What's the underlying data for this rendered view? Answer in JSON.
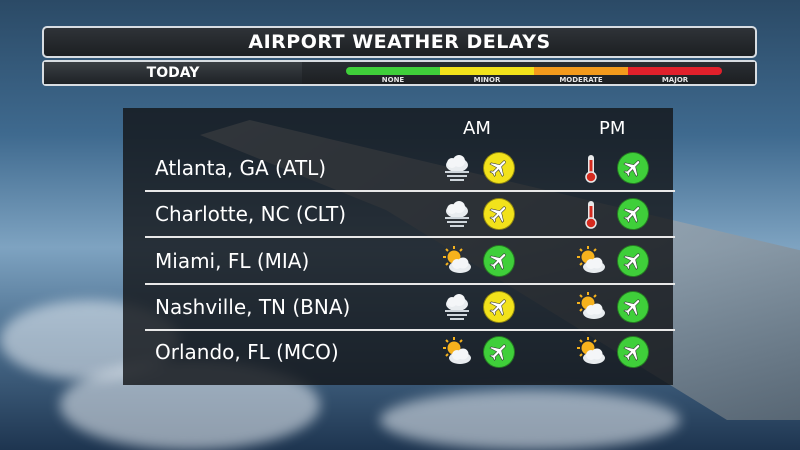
{
  "title": "AIRPORT WEATHER DELAYS",
  "period_label": "TODAY",
  "legend": [
    {
      "label": "NONE",
      "color": "#3fcf3a"
    },
    {
      "label": "MINOR",
      "color": "#f2e21b"
    },
    {
      "label": "MODERATE",
      "color": "#f39a1c"
    },
    {
      "label": "MAJOR",
      "color": "#e0202b"
    }
  ],
  "columns": {
    "am": "AM",
    "pm": "PM"
  },
  "airports": [
    {
      "name": "Atlanta, GA (ATL)",
      "am_weather": "fog-icon",
      "am_delay": "minor",
      "pm_weather": "hot-thermometer-icon",
      "pm_delay": "none"
    },
    {
      "name": "Charlotte, NC (CLT)",
      "am_weather": "fog-icon",
      "am_delay": "minor",
      "pm_weather": "hot-thermometer-icon",
      "pm_delay": "none"
    },
    {
      "name": "Miami, FL (MIA)",
      "am_weather": "partly-sunny-icon",
      "am_delay": "none",
      "pm_weather": "partly-sunny-icon",
      "pm_delay": "none"
    },
    {
      "name": "Nashville, TN (BNA)",
      "am_weather": "fog-icon",
      "am_delay": "minor",
      "pm_weather": "partly-sunny-icon",
      "pm_delay": "none"
    },
    {
      "name": "Orlando, FL (MCO)",
      "am_weather": "partly-sunny-icon",
      "am_delay": "none",
      "pm_weather": "partly-sunny-icon",
      "pm_delay": "none"
    }
  ],
  "delay_colors": {
    "none": "#3fcf3a",
    "minor": "#f2e21b"
  }
}
